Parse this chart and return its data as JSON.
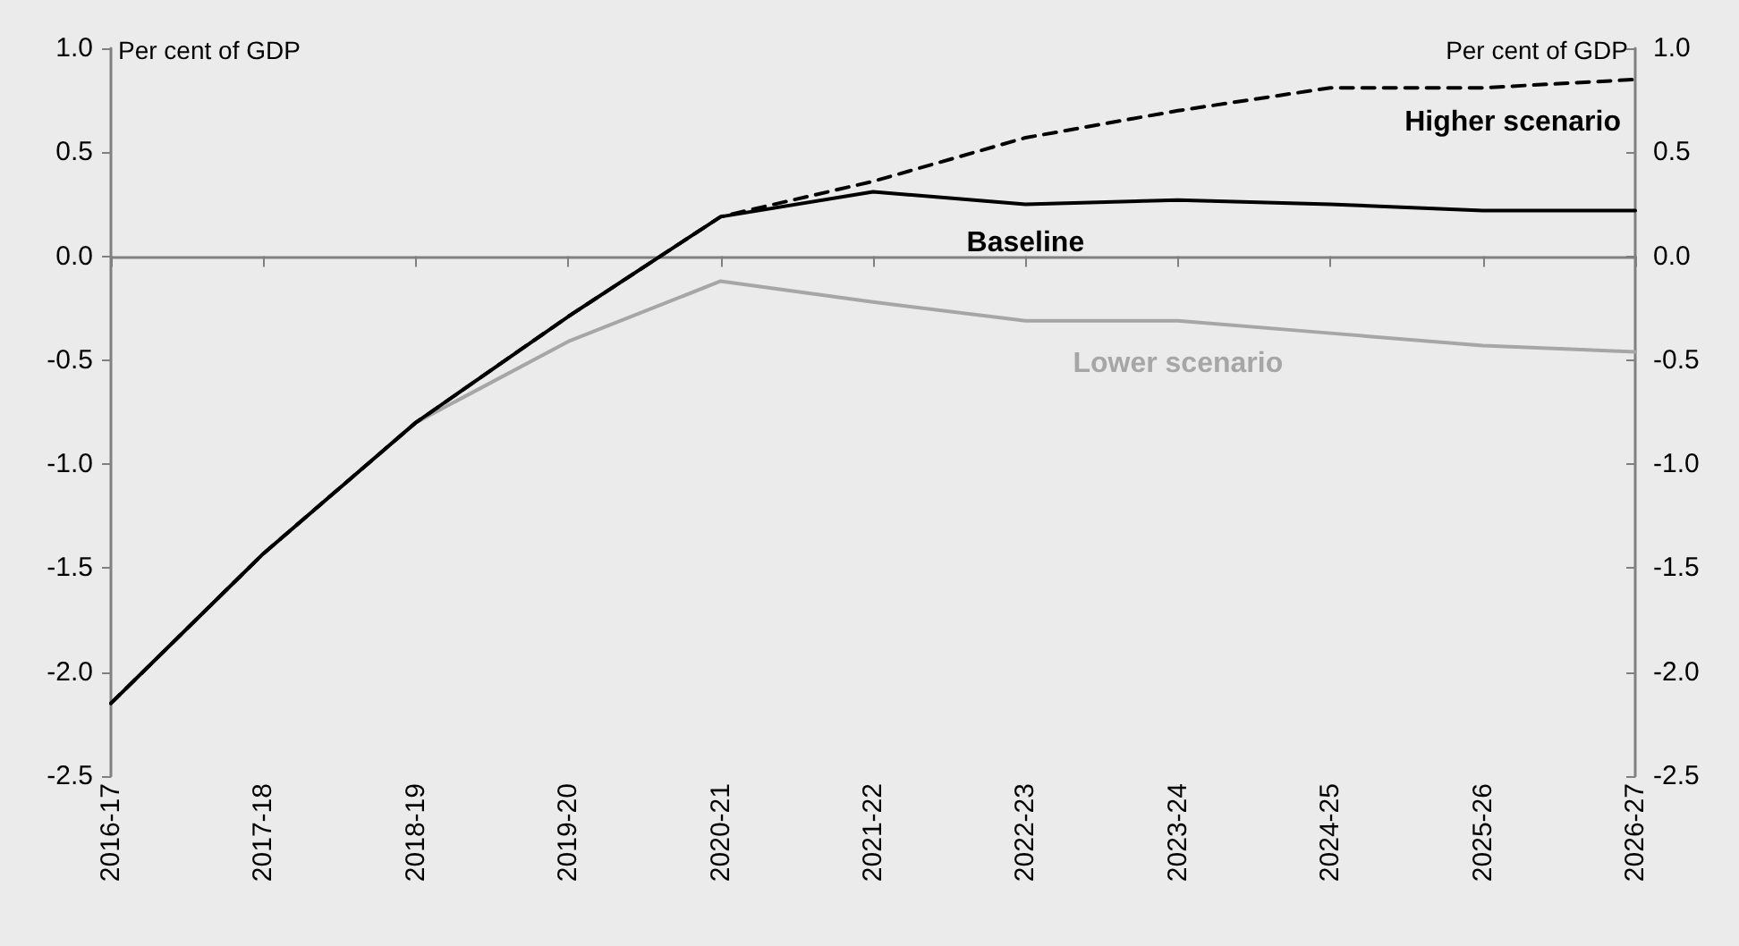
{
  "chart_data": {
    "type": "line",
    "ylabel": "Per cent of GDP",
    "y2label": "Per cent of GDP",
    "categories": [
      "2016-17",
      "2017-18",
      "2018-19",
      "2019-20",
      "2020-21",
      "2021-22",
      "2022-23",
      "2023-24",
      "2024-25",
      "2025-26",
      "2026-27"
    ],
    "series": [
      {
        "name": "Lower scenario",
        "color": "#a6a6a6",
        "line_style": "solid",
        "values": [
          -2.15,
          -1.43,
          -0.8,
          -0.41,
          -0.12,
          -0.22,
          -0.31,
          -0.31,
          -0.37,
          -0.43,
          -0.46
        ]
      },
      {
        "name": "Baseline",
        "color": "#000000",
        "line_style": "solid",
        "values": [
          -2.15,
          -1.43,
          -0.8,
          -0.29,
          0.19,
          0.31,
          0.25,
          0.27,
          0.25,
          0.22,
          0.22
        ]
      },
      {
        "name": "Higher scenario",
        "color": "#000000",
        "line_style": "dashed",
        "values": [
          -2.15,
          -1.43,
          -0.8,
          -0.29,
          0.19,
          0.36,
          0.57,
          0.7,
          0.81,
          0.81,
          0.85
        ]
      }
    ],
    "ylim": [
      -2.5,
      1.0
    ],
    "yticks": [
      {
        "value": -2.5,
        "label": "-2.5"
      },
      {
        "value": -2,
        "label": "-2.0"
      },
      {
        "value": -1.5,
        "label": "-1.5"
      },
      {
        "value": -1,
        "label": "-1.0"
      },
      {
        "value": -0.5,
        "label": "-0.5"
      },
      {
        "value": 0,
        "label": "0.0"
      },
      {
        "value": 0.5,
        "label": "0.5"
      },
      {
        "value": 1,
        "label": "1.0"
      }
    ],
    "y2lim": [
      -2.5,
      1.0
    ],
    "y2ticks": [
      {
        "value": -2.5,
        "label": "-2.5"
      },
      {
        "value": -2,
        "label": "-2.0"
      },
      {
        "value": -1.5,
        "label": "-1.5"
      },
      {
        "value": -1,
        "label": "-1.0"
      },
      {
        "value": -0.5,
        "label": "-0.5"
      },
      {
        "value": 0,
        "label": "0.0"
      },
      {
        "value": 0.5,
        "label": "0.5"
      },
      {
        "value": 1,
        "label": "1.0"
      }
    ],
    "legend": false,
    "marker": "none"
  }
}
